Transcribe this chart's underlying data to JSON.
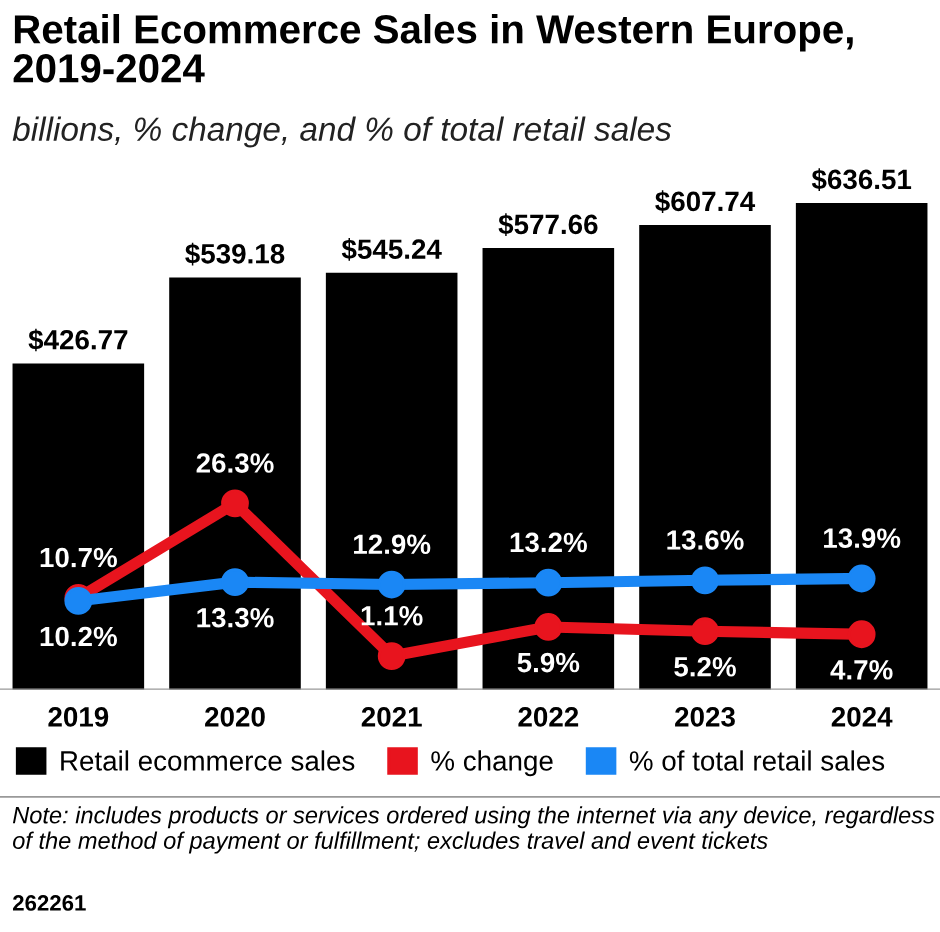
{
  "chart_data": {
    "type": "bar",
    "title": "Retail Ecommerce Sales in Western Europe,\n2019-2024",
    "subtitle": "billions, % change, and % of total retail sales",
    "categories": [
      "2019",
      "2020",
      "2021",
      "2022",
      "2023",
      "2024"
    ],
    "series": [
      {
        "name": "Retail ecommerce sales",
        "color": "#000000",
        "values": [
          426.77,
          539.18,
          545.24,
          577.66,
          607.74,
          636.51
        ],
        "value_labels": [
          "$426.77",
          "$539.18",
          "$545.24",
          "$577.66",
          "$607.74",
          "$636.51"
        ]
      },
      {
        "name": "% change",
        "type": "line",
        "axis": "y2",
        "color": "#e8141e",
        "values": [
          10.7,
          26.3,
          1.1,
          5.9,
          5.2,
          4.7
        ],
        "value_labels": [
          "10.7%",
          "26.3%",
          "1.1%",
          "5.9%",
          "5.2%",
          "4.7%"
        ]
      },
      {
        "name": "% of total retail sales",
        "type": "line",
        "axis": "y2",
        "color": "#1a87f5",
        "values": [
          10.2,
          13.3,
          12.9,
          13.2,
          13.6,
          13.9
        ],
        "value_labels": [
          "10.2%",
          "13.3%",
          "12.9%",
          "13.2%",
          "13.6%",
          "13.9%"
        ]
      }
    ],
    "marker": "circle",
    "line_style": "solid",
    "legend": "bottom",
    "grid": false,
    "tick_labels": "x",
    "annotations": [
      "Note: includes products or services ordered using the internet via any device, regardless of the method of payment or fulfillment; excludes travel and event tickets",
      "262261"
    ]
  }
}
